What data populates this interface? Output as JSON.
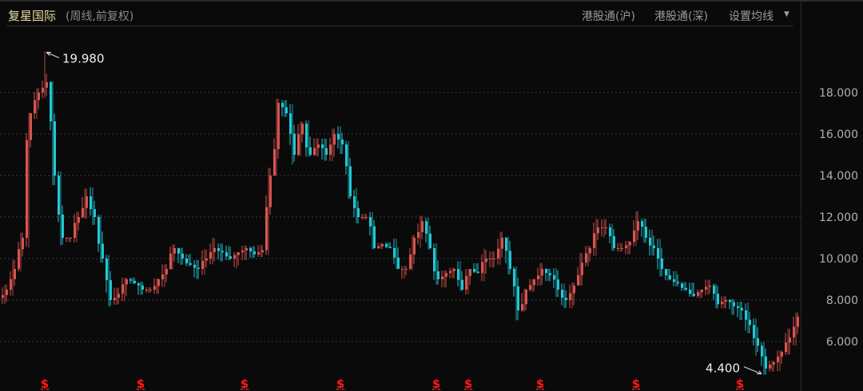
{
  "header": {
    "title": "复星国际",
    "subtitle": "(周线,前复权)",
    "links": [
      "港股通(沪)",
      "港股通(深)",
      "设置均线"
    ]
  },
  "colors": {
    "up": "#d9534f",
    "down": "#1fc8d6",
    "grid": "#3a3a3a",
    "axis_text": "#b0b0b0",
    "dividend": "#ff1a1a"
  },
  "chart_data": {
    "type": "candlestick",
    "period": "weekly",
    "ylim": [
      4.2,
      21.5
    ],
    "yticks": [
      "6.000",
      "8.000",
      "10.000",
      "12.000",
      "14.000",
      "16.000",
      "18.000"
    ],
    "grid": true,
    "closes": [
      8.5,
      9.5,
      11,
      17,
      18,
      18.5,
      14,
      11,
      11,
      12,
      13,
      12,
      10,
      8,
      8.3,
      9,
      8.8,
      8.5,
      8.5,
      9,
      9.5,
      10.5,
      10,
      9.7,
      9.5,
      10,
      10.5,
      10.3,
      10,
      10.3,
      10.5,
      10.2,
      10.4,
      14,
      17.5,
      17,
      15,
      16.5,
      15,
      15.5,
      15,
      16,
      15.5,
      13,
      12,
      12,
      10.5,
      10.7,
      10.5,
      9.5,
      9.5,
      11,
      11.8,
      10.5,
      9,
      9.3,
      9.5,
      8.5,
      9.5,
      9.3,
      10,
      10,
      11,
      9.5,
      7.5,
      8.5,
      9,
      9.5,
      9.2,
      8.5,
      8,
      8.7,
      9.8,
      10.5,
      11.5,
      11.5,
      10.5,
      10.5,
      10.8,
      11.8,
      11,
      10.5,
      9.5,
      9,
      8.8,
      8.5,
      8.2,
      8.5,
      8.7,
      7.8,
      8,
      7.7,
      7.5,
      6.8,
      5.8,
      4.7,
      5,
      5.5,
      6.2,
      7.2
    ],
    "annotations": [
      {
        "label": "19.980",
        "value": 19.98,
        "type": "max",
        "index": 5
      },
      {
        "label": "4.400",
        "value": 4.4,
        "type": "min",
        "index": 95
      }
    ],
    "dividend_marker": "$",
    "dividend_indices": [
      5,
      17,
      30,
      42,
      54,
      58,
      67,
      79,
      92
    ]
  }
}
